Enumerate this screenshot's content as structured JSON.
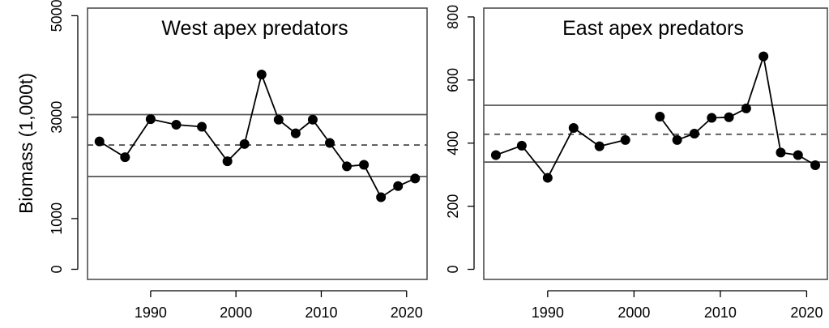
{
  "chart_data": [
    {
      "type": "line",
      "title": "West apex predators",
      "ylabel": "Biomass (1,000t)",
      "xlabel": "",
      "xlim": [
        1982.6,
        2022.4
      ],
      "ylim": [
        -200,
        5150
      ],
      "xticks": [
        1990,
        2000,
        2010,
        2020
      ],
      "yticks": [
        0,
        1000,
        3000,
        5000
      ],
      "reference_lines": [
        {
          "style": "solid",
          "y": 3050
        },
        {
          "style": "dashed",
          "y": 2450
        },
        {
          "style": "solid",
          "y": 1830
        }
      ],
      "series": [
        {
          "x": [
            1984,
            1987,
            1990,
            1993,
            1996,
            1999,
            2001,
            2003,
            2005,
            2007,
            2009,
            2011,
            2013,
            2015,
            2017,
            2019,
            2021
          ],
          "y": [
            2520,
            2210,
            2960,
            2850,
            2810,
            2130,
            2470,
            3840,
            2950,
            2680,
            2950,
            2490,
            2030,
            2060,
            1420,
            1640,
            1790
          ]
        }
      ]
    },
    {
      "type": "line",
      "title": "East apex predators",
      "ylabel": "",
      "xlabel": "",
      "xlim": [
        1982.6,
        2022.4
      ],
      "ylim": [
        -32,
        828
      ],
      "xticks": [
        1990,
        2000,
        2010,
        2020
      ],
      "yticks": [
        0,
        200,
        400,
        600,
        800
      ],
      "reference_lines": [
        {
          "style": "solid",
          "y": 520
        },
        {
          "style": "dashed",
          "y": 428
        },
        {
          "style": "solid",
          "y": 340
        }
      ],
      "series": [
        {
          "x": [
            1984,
            1987,
            1990,
            1993,
            1996,
            1999,
            2001,
            2003,
            2005,
            2007,
            2009,
            2011,
            2013,
            2015,
            2017,
            2019,
            2021
          ],
          "y": [
            362,
            392,
            290,
            448,
            390,
            410,
            null,
            484,
            410,
            430,
            480,
            482,
            510,
            675,
            370,
            362,
            330
          ]
        }
      ]
    }
  ]
}
